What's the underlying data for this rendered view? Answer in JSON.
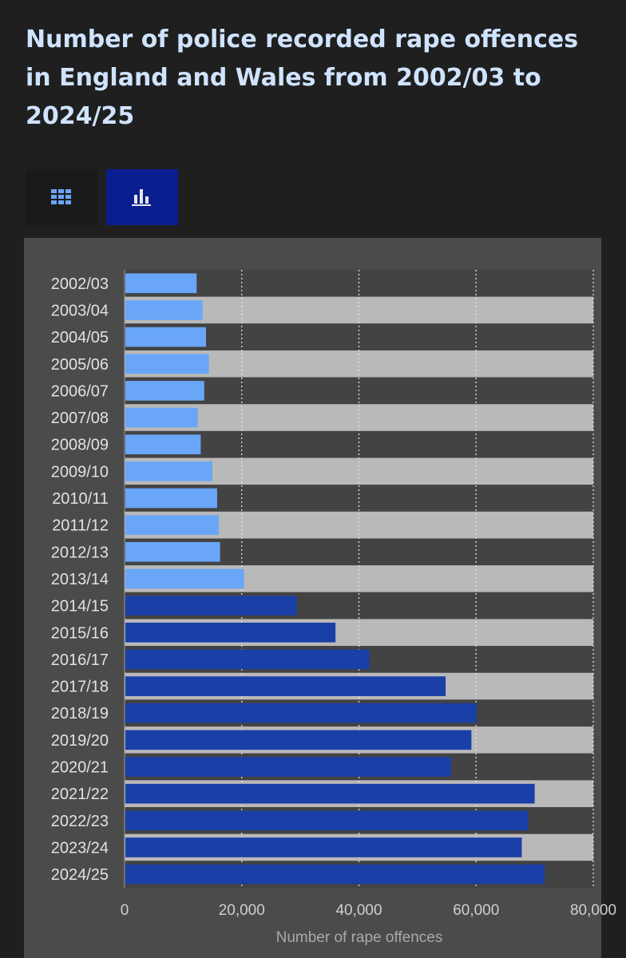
{
  "header": {
    "title": "Number of police recorded rape offences in England and Wales from 2002/03 to 2024/25"
  },
  "toolbar": {
    "table_icon": "grid-icon",
    "chart_icon": "bar-chart-icon",
    "active_view": "chart"
  },
  "colors": {
    "background": "#1f1f1f",
    "title": "#cfe3ff",
    "panel": "#4b4b4b",
    "band_light": "#b9b9b9",
    "band_dark": "#434343",
    "bar_light": "#6aa6f8",
    "bar_dark": "#1a3fa6",
    "active_button": "#0a1f8f"
  },
  "chart_data": {
    "type": "bar",
    "orientation": "horizontal",
    "title": "Number of police recorded rape offences in England and Wales from 2002/03 to 2024/25",
    "xlabel": "Number of rape offences",
    "ylabel": "",
    "xlim": [
      0,
      80000
    ],
    "xticks": [
      0,
      20000,
      40000,
      60000,
      80000
    ],
    "xtick_labels": [
      "0",
      "20,000",
      "40,000",
      "60,000",
      "80,000"
    ],
    "grid": true,
    "categories": [
      "2002/03",
      "2003/04",
      "2004/05",
      "2005/06",
      "2006/07",
      "2007/08",
      "2008/09",
      "2009/10",
      "2010/11",
      "2011/12",
      "2012/13",
      "2013/14",
      "2014/15",
      "2015/16",
      "2016/17",
      "2017/18",
      "2018/19",
      "2019/20",
      "2020/21",
      "2021/22",
      "2022/23",
      "2023/24",
      "2024/25"
    ],
    "values": [
      12300,
      13300,
      13900,
      14400,
      13600,
      12500,
      13000,
      15000,
      15800,
      16100,
      16300,
      20400,
      29400,
      36000,
      41800,
      54800,
      60100,
      59200,
      55700,
      70000,
      68900,
      67800,
      71700
    ]
  }
}
